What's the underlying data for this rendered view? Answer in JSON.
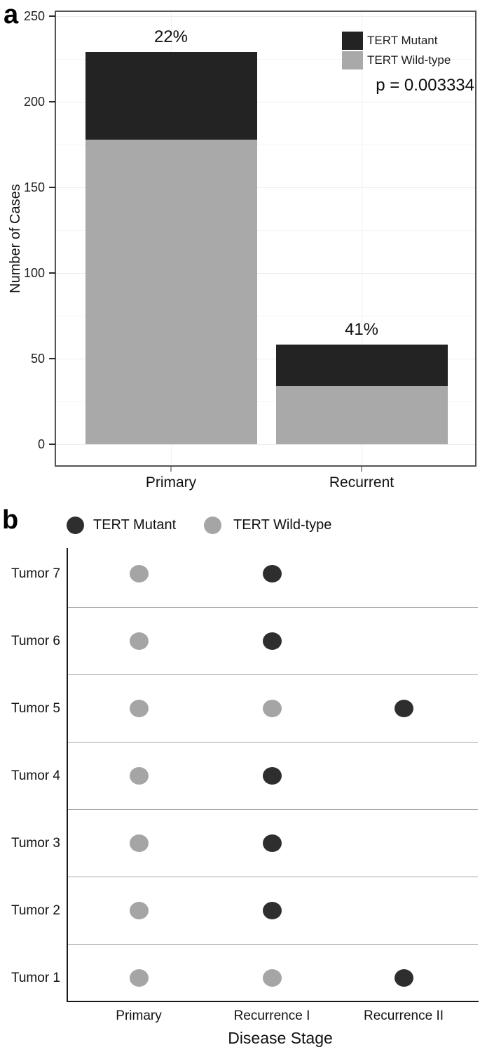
{
  "panel_a": {
    "label": "a"
  },
  "panel_b": {
    "label": "b"
  },
  "chart_data": [
    {
      "type": "bar",
      "stacked": true,
      "categories": [
        "Primary",
        "Recurrent"
      ],
      "series": [
        {
          "name": "TERT Wild-type",
          "color": "#a9a9a9",
          "values": [
            178,
            34
          ]
        },
        {
          "name": "TERT Mutant",
          "color": "#232323",
          "values": [
            51,
            24
          ]
        }
      ],
      "totals": [
        229,
        58
      ],
      "bar_labels": [
        "22%",
        "41%"
      ],
      "annotation": "p = 0.003334",
      "ylabel": "Number of Cases",
      "ylim": [
        0,
        250
      ],
      "yticks": [
        0,
        50,
        100,
        150,
        200,
        250
      ],
      "ytick_minor": [
        25,
        75,
        125,
        175,
        225
      ],
      "grid": true,
      "legend": {
        "position": "top-right",
        "entries": [
          {
            "label": "TERT Mutant",
            "color": "#232323"
          },
          {
            "label": "TERT Wild-type",
            "color": "#a9a9a9"
          }
        ]
      }
    },
    {
      "type": "scatter",
      "xlabel": "Disease Stage",
      "categories": [
        "Primary",
        "Recurrence I",
        "Recurrence II"
      ],
      "legend": {
        "position": "top",
        "entries": [
          {
            "label": "TERT Mutant",
            "color": "#2e2e2e"
          },
          {
            "label": "TERT Wild-type",
            "color": "#a5a5a5"
          }
        ]
      },
      "status_colors": {
        "TERT Mutant": "#2e2e2e",
        "TERT Wild-type": "#a5a5a5"
      },
      "rows": [
        {
          "label": "Tumor 7",
          "statuses": [
            "TERT Wild-type",
            "TERT Mutant",
            null
          ]
        },
        {
          "label": "Tumor 6",
          "statuses": [
            "TERT Wild-type",
            "TERT Mutant",
            null
          ]
        },
        {
          "label": "Tumor 5",
          "statuses": [
            "TERT Wild-type",
            "TERT Wild-type",
            "TERT Mutant"
          ]
        },
        {
          "label": "Tumor 4",
          "statuses": [
            "TERT Wild-type",
            "TERT Mutant",
            null
          ]
        },
        {
          "label": "Tumor 3",
          "statuses": [
            "TERT Wild-type",
            "TERT Mutant",
            null
          ]
        },
        {
          "label": "Tumor 2",
          "statuses": [
            "TERT Wild-type",
            "TERT Mutant",
            null
          ]
        },
        {
          "label": "Tumor 1",
          "statuses": [
            "TERT Wild-type",
            "TERT Wild-type",
            "TERT Mutant"
          ]
        }
      ]
    }
  ]
}
